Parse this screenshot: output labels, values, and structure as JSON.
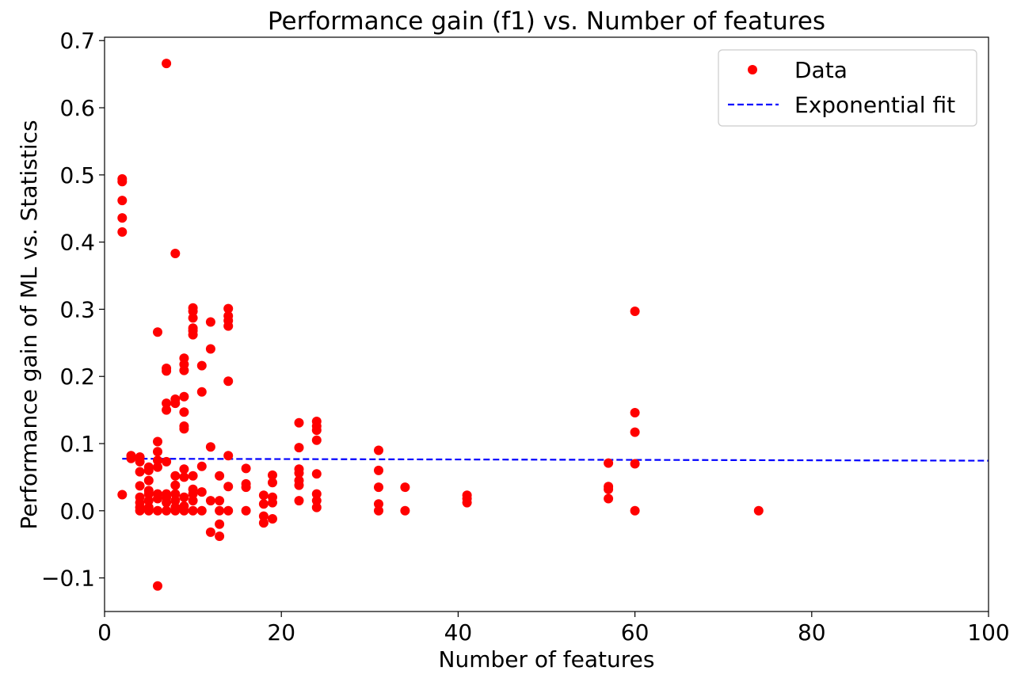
{
  "chart_data": {
    "type": "scatter",
    "title": "Performance gain (f1) vs. Number of features",
    "xlabel": "Number of features",
    "ylabel": "Performance gain of ML vs. Statistics",
    "xlim": [
      0,
      100
    ],
    "ylim": [
      -0.15,
      0.705
    ],
    "x_ticks": [
      0,
      20,
      40,
      60,
      80,
      100
    ],
    "x_tick_labels": [
      "0",
      "20",
      "40",
      "60",
      "80",
      "100"
    ],
    "y_ticks": [
      -0.1,
      0.0,
      0.1,
      0.2,
      0.3,
      0.4,
      0.5,
      0.6,
      0.7
    ],
    "y_tick_labels": [
      "−0.1",
      "0.0",
      "0.1",
      "0.2",
      "0.3",
      "0.4",
      "0.5",
      "0.6",
      "0.7"
    ],
    "grid": false,
    "legend_position": "top-right",
    "series": [
      {
        "name": "Data",
        "kind": "points",
        "color": "#ff0000",
        "points": [
          [
            2,
            0.494
          ],
          [
            2,
            0.49
          ],
          [
            2,
            0.462
          ],
          [
            2,
            0.436
          ],
          [
            2,
            0.415
          ],
          [
            2,
            0.024
          ],
          [
            3,
            0.082
          ],
          [
            3,
            0.078
          ],
          [
            4,
            0.08
          ],
          [
            4,
            0.073
          ],
          [
            4,
            0.058
          ],
          [
            4,
            0.037
          ],
          [
            4,
            0.02
          ],
          [
            4,
            0.012
          ],
          [
            4,
            0.005
          ],
          [
            4,
            0.0
          ],
          [
            5,
            0.065
          ],
          [
            5,
            0.06
          ],
          [
            5,
            0.045
          ],
          [
            5,
            0.03
          ],
          [
            5,
            0.025
          ],
          [
            5,
            0.015
          ],
          [
            5,
            0.005
          ],
          [
            5,
            0.0
          ],
          [
            6,
            0.266
          ],
          [
            6,
            0.103
          ],
          [
            6,
            0.088
          ],
          [
            6,
            0.075
          ],
          [
            6,
            0.065
          ],
          [
            6,
            0.025
          ],
          [
            6,
            0.018
          ],
          [
            6,
            0.0
          ],
          [
            6,
            -0.112
          ],
          [
            7,
            0.666
          ],
          [
            7,
            0.212
          ],
          [
            7,
            0.208
          ],
          [
            7,
            0.16
          ],
          [
            7,
            0.15
          ],
          [
            7,
            0.073
          ],
          [
            7,
            0.025
          ],
          [
            7,
            0.02
          ],
          [
            7,
            0.012
          ],
          [
            7,
            0.0
          ],
          [
            8,
            0.383
          ],
          [
            8,
            0.166
          ],
          [
            8,
            0.16
          ],
          [
            8,
            0.052
          ],
          [
            8,
            0.038
          ],
          [
            8,
            0.025
          ],
          [
            8,
            0.015
          ],
          [
            8,
            0.005
          ],
          [
            8,
            0.0
          ],
          [
            9,
            0.227
          ],
          [
            9,
            0.218
          ],
          [
            9,
            0.209
          ],
          [
            9,
            0.17
          ],
          [
            9,
            0.147
          ],
          [
            9,
            0.126
          ],
          [
            9,
            0.122
          ],
          [
            9,
            0.062
          ],
          [
            9,
            0.05
          ],
          [
            9,
            0.02
          ],
          [
            9,
            0.007
          ],
          [
            9,
            0.0
          ],
          [
            10,
            0.302
          ],
          [
            10,
            0.297
          ],
          [
            10,
            0.287
          ],
          [
            10,
            0.272
          ],
          [
            10,
            0.268
          ],
          [
            10,
            0.262
          ],
          [
            10,
            0.052
          ],
          [
            10,
            0.032
          ],
          [
            10,
            0.025
          ],
          [
            10,
            0.015
          ],
          [
            10,
            0.0
          ],
          [
            11,
            0.216
          ],
          [
            11,
            0.177
          ],
          [
            11,
            0.066
          ],
          [
            11,
            0.028
          ],
          [
            11,
            0.0
          ],
          [
            12,
            0.281
          ],
          [
            12,
            0.241
          ],
          [
            12,
            0.095
          ],
          [
            12,
            0.015
          ],
          [
            12,
            -0.032
          ],
          [
            13,
            0.052
          ],
          [
            13,
            0.015
          ],
          [
            13,
            0.0
          ],
          [
            13,
            -0.02
          ],
          [
            13,
            -0.038
          ],
          [
            14,
            0.301
          ],
          [
            14,
            0.29
          ],
          [
            14,
            0.283
          ],
          [
            14,
            0.275
          ],
          [
            14,
            0.193
          ],
          [
            14,
            0.082
          ],
          [
            14,
            0.036
          ],
          [
            14,
            0.0
          ],
          [
            16,
            0.063
          ],
          [
            16,
            0.04
          ],
          [
            16,
            0.035
          ],
          [
            16,
            0.0
          ],
          [
            18,
            0.023
          ],
          [
            18,
            0.01
          ],
          [
            18,
            -0.008
          ],
          [
            18,
            -0.018
          ],
          [
            19,
            0.053
          ],
          [
            19,
            0.042
          ],
          [
            19,
            0.02
          ],
          [
            19,
            0.012
          ],
          [
            19,
            -0.012
          ],
          [
            22,
            0.131
          ],
          [
            22,
            0.094
          ],
          [
            22,
            0.062
          ],
          [
            22,
            0.056
          ],
          [
            22,
            0.045
          ],
          [
            22,
            0.038
          ],
          [
            22,
            0.015
          ],
          [
            24,
            0.133
          ],
          [
            24,
            0.126
          ],
          [
            24,
            0.12
          ],
          [
            24,
            0.105
          ],
          [
            24,
            0.055
          ],
          [
            24,
            0.025
          ],
          [
            24,
            0.015
          ],
          [
            24,
            0.005
          ],
          [
            31,
            0.09
          ],
          [
            31,
            0.06
          ],
          [
            31,
            0.035
          ],
          [
            31,
            0.01
          ],
          [
            31,
            0.0
          ],
          [
            34,
            0.035
          ],
          [
            34,
            0.0
          ],
          [
            41,
            0.023
          ],
          [
            41,
            0.018
          ],
          [
            41,
            0.012
          ],
          [
            57,
            0.071
          ],
          [
            57,
            0.036
          ],
          [
            57,
            0.032
          ],
          [
            57,
            0.018
          ],
          [
            60,
            0.297
          ],
          [
            60,
            0.146
          ],
          [
            60,
            0.117
          ],
          [
            60,
            0.07
          ],
          [
            60,
            0.0
          ],
          [
            74,
            0.0
          ]
        ]
      },
      {
        "name": "Exponential fit",
        "kind": "dashed-line",
        "color": "#0000ff",
        "points": [
          [
            2,
            0.0775
          ],
          [
            100,
            0.0745
          ]
        ]
      }
    ]
  }
}
